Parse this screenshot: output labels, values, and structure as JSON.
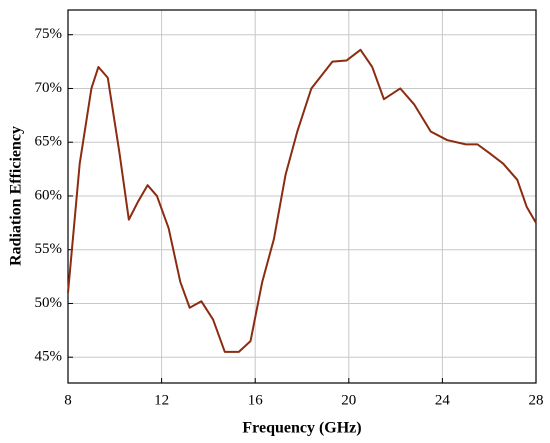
{
  "chart_data": {
    "type": "line",
    "x_label": "Frequency (GHz)",
    "y_label": "Radiation Efficiency",
    "x": [
      8,
      8.5,
      9,
      9.3,
      9.7,
      10.2,
      10.6,
      11,
      11.4,
      11.8,
      12.3,
      12.8,
      13.2,
      13.7,
      14.2,
      14.7,
      15.3,
      15.8,
      16.3,
      16.8,
      17.3,
      17.8,
      18.4,
      19.3,
      19.9,
      20.5,
      21,
      21.5,
      22.2,
      22.8,
      23.5,
      24.2,
      25,
      25.5,
      26,
      26.6,
      27.2,
      27.6,
      28
    ],
    "series": [
      {
        "color": "#8b2c12",
        "values": [
          51,
          63,
          70,
          72,
          71,
          64,
          57.8,
          59.5,
          61,
          60,
          57,
          52,
          49.6,
          50.2,
          48.5,
          45.5,
          45.5,
          46.5,
          52,
          56,
          62,
          66,
          70,
          72.5,
          72.6,
          73.6,
          72,
          69,
          70,
          68.5,
          66,
          65.2,
          64.8,
          64.8,
          64,
          63,
          61.5,
          59,
          57.5
        ]
      }
    ],
    "xlim": [
      8,
      28
    ],
    "xticks": [
      8,
      12,
      16,
      20,
      24,
      28
    ],
    "ylim": [
      42.6,
      77.3
    ],
    "yticks": [
      {
        "value": 45,
        "label": "45%"
      },
      {
        "value": 50,
        "label": "50%"
      },
      {
        "value": 55,
        "label": "55%"
      },
      {
        "value": 60,
        "label": "60%"
      },
      {
        "value": 65,
        "label": "65%"
      },
      {
        "value": 70,
        "label": "70%"
      },
      {
        "value": 75,
        "label": "75%"
      }
    ],
    "grid": true
  }
}
